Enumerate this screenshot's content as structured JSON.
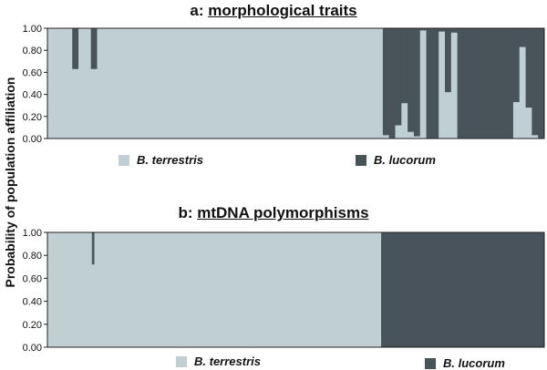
{
  "y_axis_label": "Probability of population affiliation",
  "colors": {
    "terrestris": "#c0cfd3",
    "lucorum": "#48535a"
  },
  "panels": [
    {
      "letter": "a:",
      "subtitle": "morphological traits",
      "legend": [
        "B. terrestris",
        "B. lucorum"
      ]
    },
    {
      "letter": "b:",
      "subtitle": "mtDNA polymorphisms",
      "legend": [
        "B. terrestris",
        "B. lucorum"
      ]
    }
  ],
  "chart_data": [
    {
      "type": "bar",
      "stacked": true,
      "title": "a: morphological traits",
      "ylabel": "Probability of population affiliation",
      "ylim": [
        0,
        1
      ],
      "yticks": [
        "0.00",
        "0.20",
        "0.40",
        "0.60",
        "0.80",
        "1.00"
      ],
      "series": [
        {
          "name": "B. terrestris",
          "values": [
            1,
            1,
            1,
            1,
            0.63,
            1,
            1,
            0.63,
            1,
            1,
            1,
            1,
            1,
            1,
            1,
            1,
            1,
            1,
            1,
            1,
            1,
            1,
            1,
            1,
            1,
            1,
            1,
            1,
            1,
            1,
            1,
            1,
            1,
            1,
            1,
            1,
            1,
            1,
            1,
            1,
            1,
            1,
            1,
            1,
            1,
            1,
            1,
            1,
            1,
            1,
            1,
            1,
            1,
            1,
            0.03,
            0,
            0.12,
            0.32,
            0.06,
            0.02,
            0.98,
            0,
            0,
            0.97,
            0.42,
            0.96,
            0,
            0,
            0,
            0,
            0,
            0,
            0,
            0,
            0,
            0.33,
            0.83,
            0.28,
            0.03,
            0
          ]
        },
        {
          "name": "B. lucorum",
          "values": [
            0,
            0,
            0,
            0,
            0.37,
            0,
            0,
            0.37,
            0,
            0,
            0,
            0,
            0,
            0,
            0,
            0,
            0,
            0,
            0,
            0,
            0,
            0,
            0,
            0,
            0,
            0,
            0,
            0,
            0,
            0,
            0,
            0,
            0,
            0,
            0,
            0,
            0,
            0,
            0,
            0,
            0,
            0,
            0,
            0,
            0,
            0,
            0,
            0,
            0,
            0,
            0,
            0,
            0,
            0,
            0.97,
            1,
            0.88,
            0.68,
            0.94,
            0.98,
            0.02,
            1,
            1,
            0.03,
            0.58,
            0.04,
            1,
            1,
            1,
            1,
            1,
            1,
            1,
            1,
            1,
            0.67,
            0.17,
            0.72,
            0.97,
            1
          ]
        }
      ]
    },
    {
      "type": "bar",
      "stacked": true,
      "title": "b: mtDNA polymorphisms",
      "ylabel": "Probability of population affiliation",
      "ylim": [
        0,
        1
      ],
      "yticks": [
        "0.00",
        "0.20",
        "0.40",
        "0.60",
        "0.80",
        "1.00"
      ],
      "series": [
        {
          "name": "B. terrestris",
          "values": [
            1,
            1,
            1,
            1,
            1,
            1,
            1,
            1,
            1,
            1,
            1,
            1,
            1,
            1,
            1,
            1,
            1,
            1,
            0.72,
            1,
            1,
            1,
            1,
            1,
            1,
            1,
            1,
            1,
            1,
            1,
            1,
            1,
            1,
            1,
            1,
            1,
            1,
            1,
            1,
            1,
            1,
            1,
            1,
            1,
            1,
            1,
            1,
            1,
            1,
            1,
            1,
            1,
            1,
            1,
            1,
            1,
            1,
            1,
            1,
            1,
            1,
            1,
            1,
            1,
            1,
            1,
            1,
            1,
            1,
            1,
            1,
            1,
            1,
            1,
            1,
            1,
            1,
            1,
            1,
            1,
            1,
            1,
            1,
            1,
            1,
            1,
            1,
            1,
            1,
            1,
            1,
            1,
            1,
            1,
            1,
            1,
            1,
            1,
            1,
            1,
            1,
            1,
            1,
            1,
            1,
            1,
            1,
            1,
            1,
            1,
            1,
            1,
            1,
            1,
            1,
            1,
            1,
            1,
            1,
            1,
            1,
            1,
            1,
            1,
            1,
            1,
            1,
            1,
            1,
            1,
            1,
            1,
            1,
            1,
            1,
            0,
            0,
            0,
            0,
            0,
            0,
            0,
            0,
            0,
            0,
            0,
            0,
            0,
            0,
            0,
            0,
            0,
            0,
            0,
            0,
            0,
            0,
            0,
            0,
            0,
            0,
            0,
            0,
            0,
            0,
            0,
            0,
            0,
            0,
            0,
            0,
            0,
            0,
            0,
            0,
            0,
            0,
            0,
            0,
            0,
            0,
            0,
            0,
            0,
            0,
            0,
            0,
            0,
            0,
            0,
            0,
            0,
            0,
            0,
            0,
            0,
            0,
            0,
            0,
            0,
            0
          ]
        },
        {
          "name": "B. lucorum",
          "values": [
            0,
            0,
            0,
            0,
            0,
            0,
            0,
            0,
            0,
            0,
            0,
            0,
            0,
            0,
            0,
            0,
            0,
            0,
            0.28,
            0,
            0,
            0,
            0,
            0,
            0,
            0,
            0,
            0,
            0,
            0,
            0,
            0,
            0,
            0,
            0,
            0,
            0,
            0,
            0,
            0,
            0,
            0,
            0,
            0,
            0,
            0,
            0,
            0,
            0,
            0,
            0,
            0,
            0,
            0,
            0,
            0,
            0,
            0,
            0,
            0,
            0,
            0,
            0,
            0,
            0,
            0,
            0,
            0,
            0,
            0,
            0,
            0,
            0,
            0,
            0,
            0,
            0,
            0,
            0,
            0,
            0,
            0,
            0,
            0,
            0,
            0,
            0,
            0,
            0,
            0,
            0,
            0,
            0,
            0,
            0,
            0,
            0,
            0,
            0,
            0,
            0,
            0,
            0,
            0,
            0,
            0,
            0,
            0,
            0,
            0,
            0,
            0,
            0,
            0,
            0,
            0,
            0,
            0,
            0,
            0,
            0,
            0,
            0,
            0,
            0,
            0,
            0,
            0,
            0,
            0,
            0,
            0,
            0,
            0,
            0,
            1,
            1,
            1,
            1,
            1,
            1,
            1,
            1,
            1,
            1,
            1,
            1,
            1,
            1,
            1,
            1,
            1,
            1,
            1,
            1,
            1,
            1,
            1,
            1,
            1,
            1,
            1,
            1,
            1,
            1,
            1,
            1,
            1,
            1,
            1,
            1,
            1,
            1,
            1,
            1,
            1,
            1,
            1,
            1,
            1,
            1,
            1,
            1,
            1,
            1,
            1,
            1,
            1,
            1,
            1,
            1,
            1,
            1,
            1,
            1,
            1,
            1,
            1,
            1,
            1,
            1
          ]
        }
      ]
    }
  ]
}
